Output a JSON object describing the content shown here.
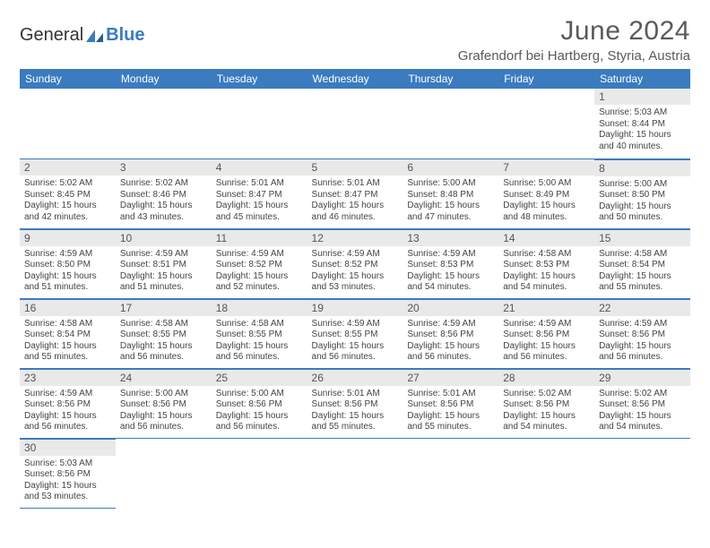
{
  "logo": {
    "general": "General",
    "blue": "Blue"
  },
  "title": "June 2024",
  "location": "Grafendorf bei Hartberg, Styria, Austria",
  "colors": {
    "header_bg": "#3b7bbf",
    "header_text": "#ffffff",
    "daynum_bg": "#e9e9e9",
    "border": "#3b7bbf",
    "text": "#333333",
    "subtext": "#5a5a5a"
  },
  "day_headers": [
    "Sunday",
    "Monday",
    "Tuesday",
    "Wednesday",
    "Thursday",
    "Friday",
    "Saturday"
  ],
  "weeks": [
    [
      null,
      null,
      null,
      null,
      null,
      null,
      {
        "n": "1",
        "sr": "5:03 AM",
        "ss": "8:44 PM",
        "dl": "15 hours and 40 minutes."
      }
    ],
    [
      {
        "n": "2",
        "sr": "5:02 AM",
        "ss": "8:45 PM",
        "dl": "15 hours and 42 minutes."
      },
      {
        "n": "3",
        "sr": "5:02 AM",
        "ss": "8:46 PM",
        "dl": "15 hours and 43 minutes."
      },
      {
        "n": "4",
        "sr": "5:01 AM",
        "ss": "8:47 PM",
        "dl": "15 hours and 45 minutes."
      },
      {
        "n": "5",
        "sr": "5:01 AM",
        "ss": "8:47 PM",
        "dl": "15 hours and 46 minutes."
      },
      {
        "n": "6",
        "sr": "5:00 AM",
        "ss": "8:48 PM",
        "dl": "15 hours and 47 minutes."
      },
      {
        "n": "7",
        "sr": "5:00 AM",
        "ss": "8:49 PM",
        "dl": "15 hours and 48 minutes."
      },
      {
        "n": "8",
        "sr": "5:00 AM",
        "ss": "8:50 PM",
        "dl": "15 hours and 50 minutes."
      }
    ],
    [
      {
        "n": "9",
        "sr": "4:59 AM",
        "ss": "8:50 PM",
        "dl": "15 hours and 51 minutes."
      },
      {
        "n": "10",
        "sr": "4:59 AM",
        "ss": "8:51 PM",
        "dl": "15 hours and 51 minutes."
      },
      {
        "n": "11",
        "sr": "4:59 AM",
        "ss": "8:52 PM",
        "dl": "15 hours and 52 minutes."
      },
      {
        "n": "12",
        "sr": "4:59 AM",
        "ss": "8:52 PM",
        "dl": "15 hours and 53 minutes."
      },
      {
        "n": "13",
        "sr": "4:59 AM",
        "ss": "8:53 PM",
        "dl": "15 hours and 54 minutes."
      },
      {
        "n": "14",
        "sr": "4:58 AM",
        "ss": "8:53 PM",
        "dl": "15 hours and 54 minutes."
      },
      {
        "n": "15",
        "sr": "4:58 AM",
        "ss": "8:54 PM",
        "dl": "15 hours and 55 minutes."
      }
    ],
    [
      {
        "n": "16",
        "sr": "4:58 AM",
        "ss": "8:54 PM",
        "dl": "15 hours and 55 minutes."
      },
      {
        "n": "17",
        "sr": "4:58 AM",
        "ss": "8:55 PM",
        "dl": "15 hours and 56 minutes."
      },
      {
        "n": "18",
        "sr": "4:58 AM",
        "ss": "8:55 PM",
        "dl": "15 hours and 56 minutes."
      },
      {
        "n": "19",
        "sr": "4:59 AM",
        "ss": "8:55 PM",
        "dl": "15 hours and 56 minutes."
      },
      {
        "n": "20",
        "sr": "4:59 AM",
        "ss": "8:56 PM",
        "dl": "15 hours and 56 minutes."
      },
      {
        "n": "21",
        "sr": "4:59 AM",
        "ss": "8:56 PM",
        "dl": "15 hours and 56 minutes."
      },
      {
        "n": "22",
        "sr": "4:59 AM",
        "ss": "8:56 PM",
        "dl": "15 hours and 56 minutes."
      }
    ],
    [
      {
        "n": "23",
        "sr": "4:59 AM",
        "ss": "8:56 PM",
        "dl": "15 hours and 56 minutes."
      },
      {
        "n": "24",
        "sr": "5:00 AM",
        "ss": "8:56 PM",
        "dl": "15 hours and 56 minutes."
      },
      {
        "n": "25",
        "sr": "5:00 AM",
        "ss": "8:56 PM",
        "dl": "15 hours and 56 minutes."
      },
      {
        "n": "26",
        "sr": "5:01 AM",
        "ss": "8:56 PM",
        "dl": "15 hours and 55 minutes."
      },
      {
        "n": "27",
        "sr": "5:01 AM",
        "ss": "8:56 PM",
        "dl": "15 hours and 55 minutes."
      },
      {
        "n": "28",
        "sr": "5:02 AM",
        "ss": "8:56 PM",
        "dl": "15 hours and 54 minutes."
      },
      {
        "n": "29",
        "sr": "5:02 AM",
        "ss": "8:56 PM",
        "dl": "15 hours and 54 minutes."
      }
    ],
    [
      {
        "n": "30",
        "sr": "5:03 AM",
        "ss": "8:56 PM",
        "dl": "15 hours and 53 minutes."
      },
      null,
      null,
      null,
      null,
      null,
      null
    ]
  ],
  "labels": {
    "sunrise": "Sunrise:",
    "sunset": "Sunset:",
    "daylight": "Daylight:"
  }
}
